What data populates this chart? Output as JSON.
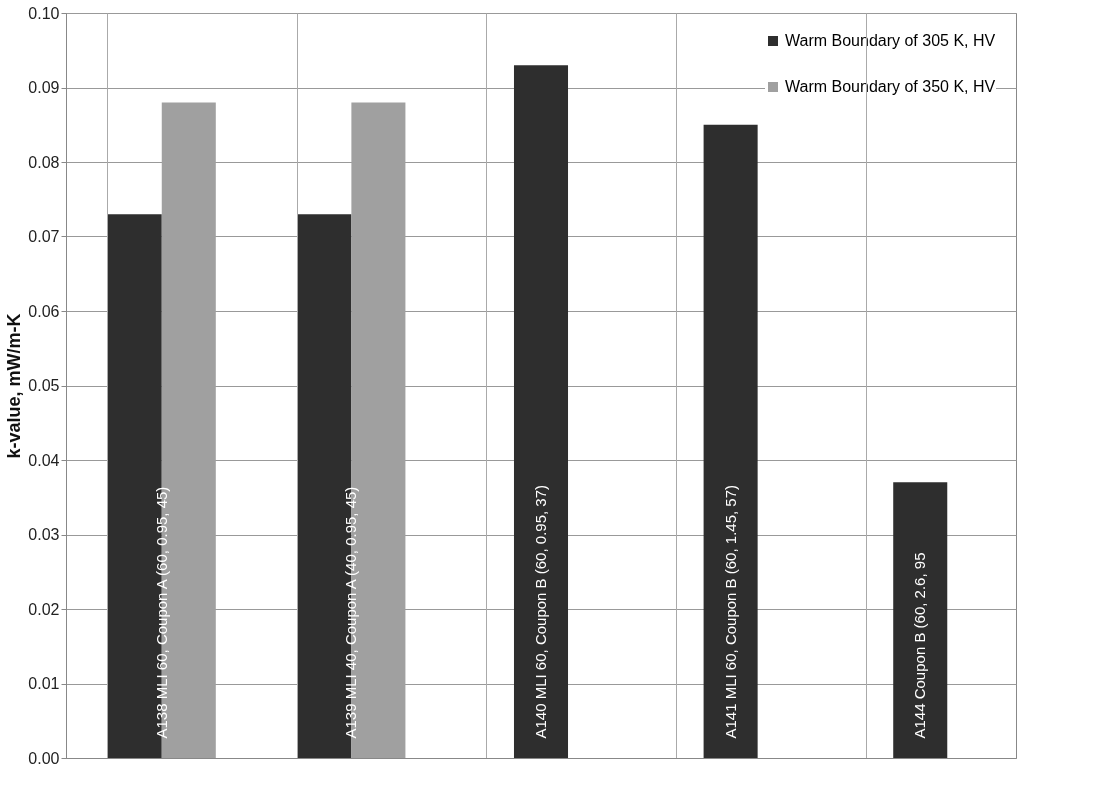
{
  "chart_data": {
    "type": "bar",
    "ylabel": "k-value, mW/m-K",
    "categories": [
      "A138 MLI 60, Coupon A (60, 0.95, 45)",
      "A139 MLI 40, Coupon A (40, 0.95, 45)",
      "A140 MLI 60, Coupon B (60, 0.95, 37)",
      "A141 MLI 60, Coupon B (60, 1.45, 57)",
      "A144 Coupon B (60, 2.6, 95"
    ],
    "series": [
      {
        "name": "Warm Boundary of 305 K, HV",
        "color": "#2e2e2e",
        "values": [
          0.073,
          0.073,
          0.093,
          0.085,
          0.037
        ]
      },
      {
        "name": "Warm Boundary of 350 K, HV",
        "color": "#a0a0a0",
        "values": [
          0.088,
          0.088,
          null,
          null,
          null
        ]
      }
    ],
    "ylim": [
      0,
      0.1
    ],
    "yticks": [
      {
        "value": 0,
        "label": "0.00"
      },
      {
        "value": 0.01,
        "label": "0.01"
      },
      {
        "value": 0.02,
        "label": "0.02"
      },
      {
        "value": 0.03,
        "label": "0.03"
      },
      {
        "value": 0.04,
        "label": "0.04"
      },
      {
        "value": 0.05,
        "label": "0.05"
      },
      {
        "value": 0.06,
        "label": "0.06"
      },
      {
        "value": 0.07,
        "label": "0.07"
      },
      {
        "value": 0.08,
        "label": "0.08"
      },
      {
        "value": 0.09,
        "label": "0.09"
      },
      {
        "value": 0.1,
        "label": "0.10"
      }
    ],
    "grid": true,
    "legend": "top right"
  }
}
